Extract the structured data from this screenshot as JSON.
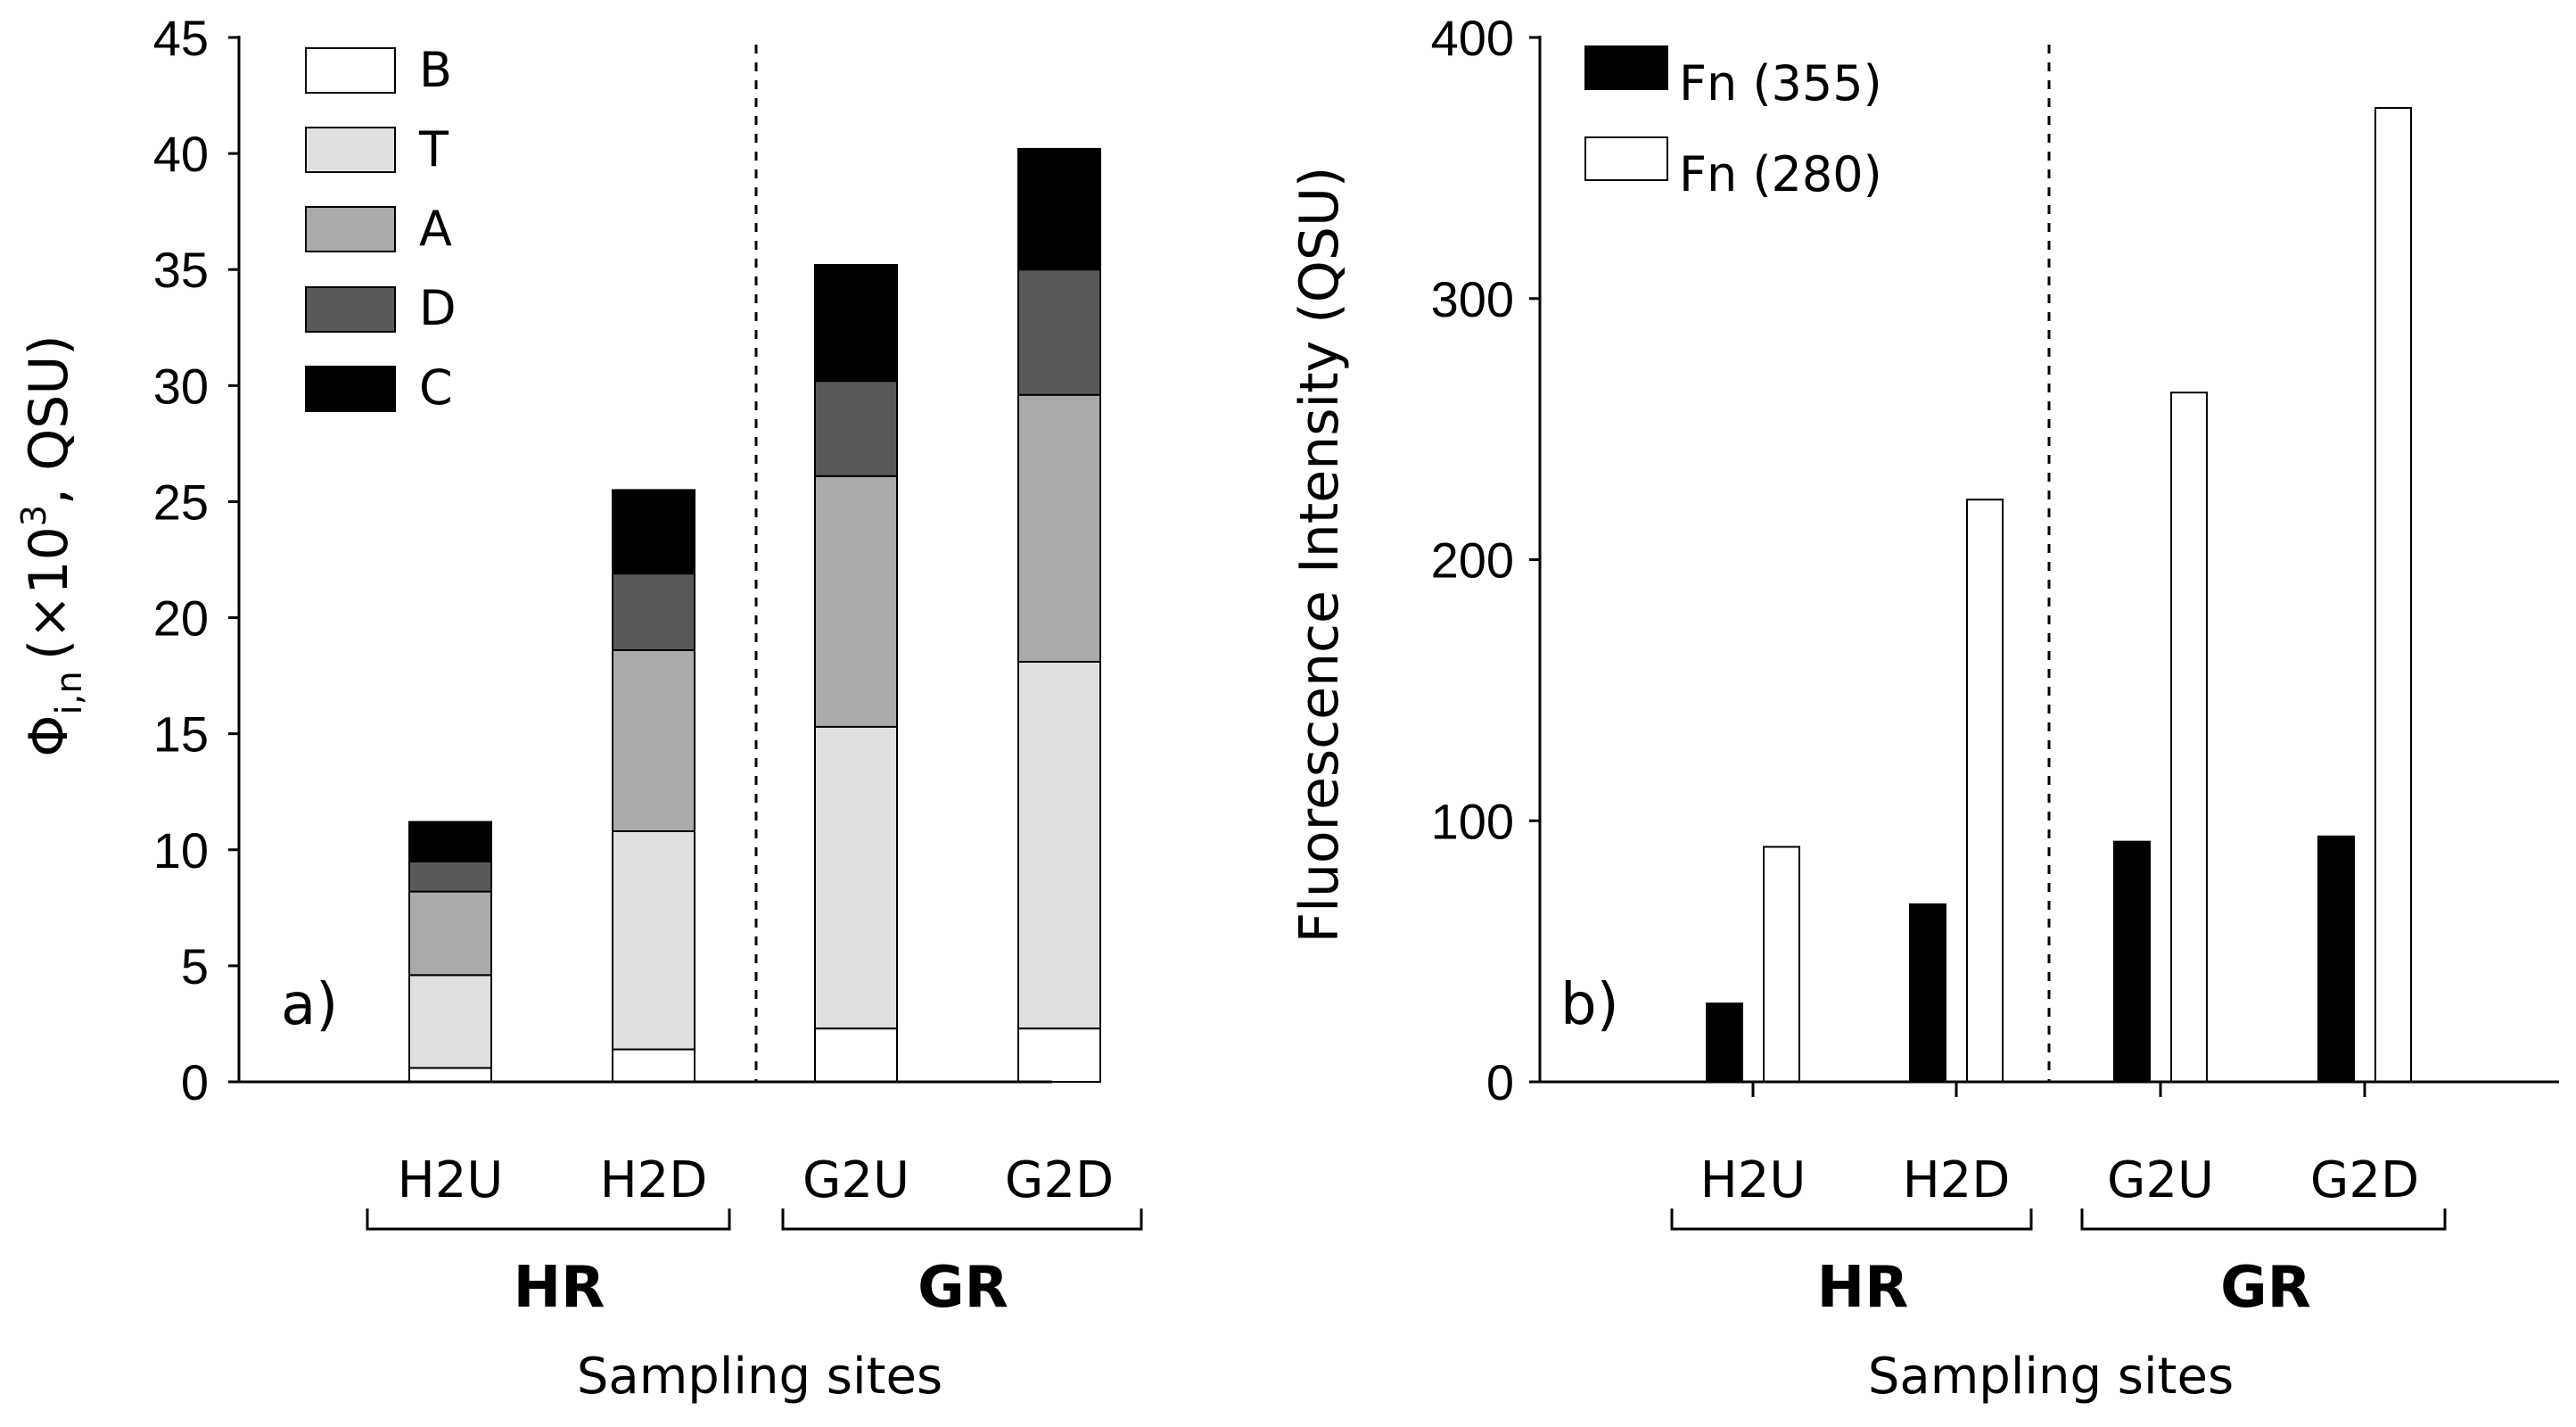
{
  "chart_data": [
    {
      "type": "bar",
      "stacked": true,
      "panel_label": "a)",
      "categories": [
        "H2U",
        "H2D",
        "G2U",
        "G2D"
      ],
      "groups": [
        {
          "label": "HR",
          "categories": [
            "H2U",
            "H2D"
          ]
        },
        {
          "label": "GR",
          "categories": [
            "G2U",
            "G2D"
          ]
        }
      ],
      "series": [
        {
          "name": "B",
          "color": "#ffffff",
          "values": [
            0.6,
            1.4,
            2.3,
            2.3
          ]
        },
        {
          "name": "T",
          "color": "#e0e0e0",
          "values": [
            4.0,
            9.4,
            13.0,
            15.8
          ]
        },
        {
          "name": "A",
          "color": "#aaaaaa",
          "values": [
            3.6,
            7.8,
            10.8,
            11.5
          ]
        },
        {
          "name": "D",
          "color": "#595959",
          "values": [
            1.3,
            3.3,
            4.1,
            5.4
          ]
        },
        {
          "name": "C",
          "color": "#000000",
          "values": [
            1.7,
            3.6,
            5.0,
            5.2
          ]
        }
      ],
      "ylim": [
        0,
        45
      ],
      "yticks": [
        0,
        5,
        10,
        15,
        20,
        25,
        30,
        35,
        40,
        45
      ],
      "ylabel": {
        "symbol": "Φ",
        "subscript": "i,n",
        "prefix": "(×10",
        "superscript": "3",
        "suffix": ", QSU)"
      },
      "xlabel": "Sampling sites",
      "legend": "top-left"
    },
    {
      "type": "bar",
      "stacked": false,
      "panel_label": "b)",
      "categories": [
        "H2U",
        "H2D",
        "G2U",
        "G2D"
      ],
      "groups": [
        {
          "label": "HR",
          "categories": [
            "H2U",
            "H2D"
          ]
        },
        {
          "label": "GR",
          "categories": [
            "G2U",
            "G2D"
          ]
        }
      ],
      "series": [
        {
          "name": "Fn (355)",
          "color": "#000000",
          "values": [
            30,
            68,
            92,
            94
          ]
        },
        {
          "name": "Fn (280)",
          "color": "#ffffff",
          "values": [
            90,
            223,
            264,
            373
          ]
        }
      ],
      "ylim": [
        0,
        400
      ],
      "yticks": [
        0,
        100,
        200,
        300,
        400
      ],
      "ylabel": "Fluorescence  Intensity  (QSU)",
      "xlabel": "Sampling sites",
      "legend": "top-left"
    }
  ]
}
